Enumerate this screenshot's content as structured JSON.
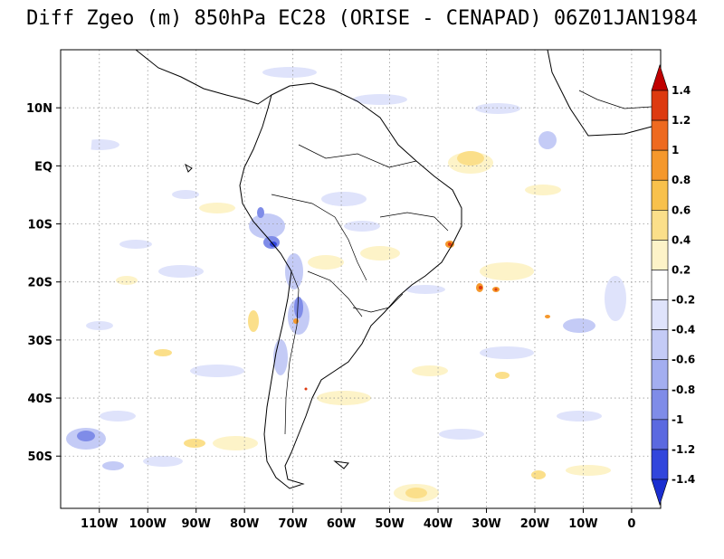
{
  "title": "Diff Zgeo (m) 850hPa EC28 (ORISE - CENAPAD) 06Z01JAN1984",
  "map": {
    "lon_range": [
      -118,
      6
    ],
    "lat_range": [
      -59,
      20
    ],
    "lon_ticks": [
      {
        "value": -110,
        "label": "110W"
      },
      {
        "value": -100,
        "label": "100W"
      },
      {
        "value": -90,
        "label": "90W"
      },
      {
        "value": -80,
        "label": "80W"
      },
      {
        "value": -70,
        "label": "70W"
      },
      {
        "value": -60,
        "label": "60W"
      },
      {
        "value": -50,
        "label": "50W"
      },
      {
        "value": -40,
        "label": "40W"
      },
      {
        "value": -30,
        "label": "30W"
      },
      {
        "value": -20,
        "label": "20W"
      },
      {
        "value": -10,
        "label": "10W"
      },
      {
        "value": 0,
        "label": "0"
      }
    ],
    "lat_ticks": [
      {
        "value": 10,
        "label": "10N"
      },
      {
        "value": 0,
        "label": "EQ"
      },
      {
        "value": -10,
        "label": "10S"
      },
      {
        "value": -20,
        "label": "20S"
      },
      {
        "value": -30,
        "label": "30S"
      },
      {
        "value": -40,
        "label": "40S"
      },
      {
        "value": -50,
        "label": "50S"
      }
    ],
    "grid": true
  },
  "colorbar": {
    "levels": [
      "1.4",
      "1.2",
      "1",
      "0.8",
      "0.6",
      "0.4",
      "0.2",
      "-0.2",
      "-0.4",
      "-0.6",
      "-0.8",
      "-1",
      "-1.2",
      "-1.4"
    ],
    "colors": [
      "#c00000",
      "#dd3a10",
      "#ee6a20",
      "#f5982c",
      "#f8c14c",
      "#fbdf8a",
      "#fdf3c8",
      "#ffffff",
      "#dfe3fb",
      "#c4cbf6",
      "#a3aef0",
      "#7f8ce8",
      "#5b69e0",
      "#3246dc",
      "#1a2ed0"
    ]
  },
  "field": {
    "blue_strong": "#5b69e0",
    "blue_light": "#c4cbf6",
    "orange_light": "#fbdf8a",
    "orange_mid": "#f5982c",
    "red": "#dd3a10"
  }
}
